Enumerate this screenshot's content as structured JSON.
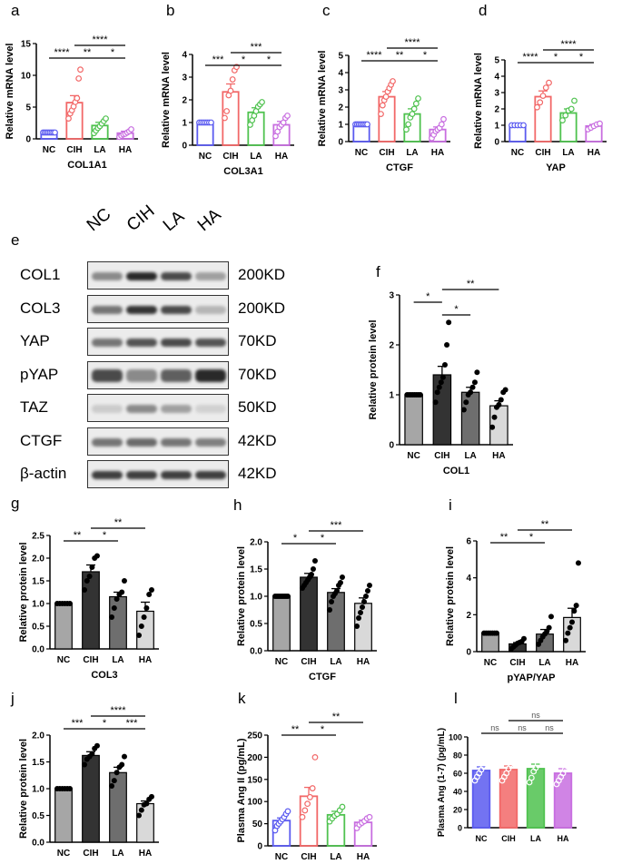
{
  "panel_letters": {
    "a": "a",
    "b": "b",
    "c": "c",
    "d": "d",
    "e": "e",
    "f": "f",
    "g": "g",
    "h": "h",
    "i": "i",
    "j": "j",
    "k": "k",
    "l": "l"
  },
  "western_blot": {
    "lanes": [
      "NC",
      "CIH",
      "LA",
      "HA"
    ],
    "rows": [
      {
        "protein": "COL1",
        "size": "200KD"
      },
      {
        "protein": "COL3",
        "size": "200KD"
      },
      {
        "protein": "YAP",
        "size": "70KD"
      },
      {
        "protein": "pYAP",
        "size": "70KD"
      },
      {
        "protein": "TAZ",
        "size": "50KD"
      },
      {
        "protein": "CTGF",
        "size": "42KD"
      },
      {
        "protein": "β-actin",
        "size": "42KD"
      }
    ]
  },
  "chart_data": [
    {
      "id": "a",
      "type": "bar",
      "style": "color",
      "categories": [
        "NC",
        "CIH",
        "LA",
        "HA"
      ],
      "xlabel": "COL1A1",
      "ylabel": "Relative mRNA level",
      "ylim": [
        0,
        15
      ],
      "yticks": [
        0,
        5,
        10,
        15
      ],
      "values": [
        1.0,
        5.7,
        2.1,
        0.9
      ],
      "errors": [
        0.1,
        1.1,
        0.5,
        0.3
      ],
      "points": [
        [
          1,
          1,
          1,
          1,
          1,
          1,
          1,
          1
        ],
        [
          3.2,
          4.0,
          4.5,
          5.1,
          5.8,
          6.4,
          9.5,
          10.9
        ],
        [
          0.9,
          1.3,
          1.7,
          2.0,
          2.4,
          2.8,
          3.2
        ],
        [
          0.3,
          0.5,
          0.7,
          0.8,
          1.0,
          1.2,
          1.5
        ]
      ],
      "colors": [
        "#5b5bf0",
        "#f26868",
        "#4fc24f",
        "#c86ee0"
      ],
      "sig": [
        {
          "from": 0,
          "to": 1,
          "label": "****",
          "level": 0
        },
        {
          "from": 1,
          "to": 2,
          "label": "**",
          "level": 0
        },
        {
          "from": 2,
          "to": 3,
          "label": "*",
          "level": 0
        },
        {
          "from": 1,
          "to": 3,
          "label": "****",
          "level": 1
        }
      ]
    },
    {
      "id": "b",
      "type": "bar",
      "style": "color",
      "categories": [
        "NC",
        "CIH",
        "LA",
        "HA"
      ],
      "xlabel": "COL3A1",
      "ylabel": "Relative mRNA level",
      "ylim": [
        0,
        4
      ],
      "yticks": [
        0,
        1,
        2,
        3,
        4
      ],
      "values": [
        1.0,
        2.35,
        1.45,
        0.9
      ],
      "errors": [
        0.02,
        0.35,
        0.2,
        0.15
      ],
      "points": [
        [
          1,
          1,
          1,
          1,
          1,
          1,
          1
        ],
        [
          1.2,
          1.5,
          2.2,
          2.4,
          2.9,
          3.3,
          3.45
        ],
        [
          0.9,
          1.1,
          1.3,
          1.5,
          1.7,
          1.8,
          1.9
        ],
        [
          0.4,
          0.6,
          0.8,
          0.9,
          1.0,
          1.2,
          1.3
        ]
      ],
      "colors": [
        "#5b5bf0",
        "#f26868",
        "#4fc24f",
        "#c86ee0"
      ],
      "sig": [
        {
          "from": 0,
          "to": 1,
          "label": "***",
          "level": 0
        },
        {
          "from": 1,
          "to": 2,
          "label": "*",
          "level": 0
        },
        {
          "from": 2,
          "to": 3,
          "label": "*",
          "level": 0
        },
        {
          "from": 1,
          "to": 3,
          "label": "***",
          "level": 1
        }
      ]
    },
    {
      "id": "c",
      "type": "bar",
      "style": "color",
      "categories": [
        "NC",
        "CIH",
        "LA",
        "HA"
      ],
      "xlabel": "CTGF",
      "ylabel": "Relative mRNA level",
      "ylim": [
        0,
        5
      ],
      "yticks": [
        0,
        1,
        2,
        3,
        4,
        5
      ],
      "values": [
        1.0,
        2.6,
        1.6,
        0.7
      ],
      "errors": [
        0.03,
        0.3,
        0.3,
        0.15
      ],
      "points": [
        [
          1,
          1,
          1,
          1,
          1,
          1,
          1,
          1
        ],
        [
          1.6,
          2.1,
          2.4,
          2.6,
          2.9,
          3.1,
          3.3,
          3.5
        ],
        [
          0.7,
          1.0,
          1.4,
          1.6,
          1.9,
          2.2,
          2.5
        ],
        [
          0.2,
          0.4,
          0.6,
          0.7,
          0.8,
          1.0,
          1.3
        ]
      ],
      "colors": [
        "#5b5bf0",
        "#f26868",
        "#4fc24f",
        "#c86ee0"
      ],
      "sig": [
        {
          "from": 0,
          "to": 1,
          "label": "****",
          "level": 0
        },
        {
          "from": 1,
          "to": 2,
          "label": "**",
          "level": 0
        },
        {
          "from": 2,
          "to": 3,
          "label": "*",
          "level": 0
        },
        {
          "from": 1,
          "to": 3,
          "label": "****",
          "level": 1
        }
      ]
    },
    {
      "id": "d",
      "type": "bar",
      "style": "color",
      "categories": [
        "NC",
        "CIH",
        "LA",
        "HA"
      ],
      "xlabel": "YAP",
      "ylabel": "Relative mRNA level",
      "ylim": [
        0,
        5
      ],
      "yticks": [
        0,
        1,
        2,
        3,
        4,
        5
      ],
      "values": [
        1.0,
        2.75,
        1.75,
        0.95
      ],
      "errors": [
        0.02,
        0.35,
        0.25,
        0.1
      ],
      "points": [
        [
          1,
          1,
          1,
          1,
          1
        ],
        [
          2.1,
          2.4,
          2.8,
          3.3,
          3.6
        ],
        [
          1.3,
          1.6,
          1.9,
          2.0,
          2.5
        ],
        [
          0.75,
          0.85,
          0.95,
          1.05,
          1.1
        ]
      ],
      "colors": [
        "#5b5bf0",
        "#f26868",
        "#4fc24f",
        "#c86ee0"
      ],
      "sig": [
        {
          "from": 0,
          "to": 1,
          "label": "****",
          "level": 0
        },
        {
          "from": 1,
          "to": 2,
          "label": "*",
          "level": 0
        },
        {
          "from": 2,
          "to": 3,
          "label": "*",
          "level": 0
        },
        {
          "from": 1,
          "to": 3,
          "label": "****",
          "level": 1
        }
      ]
    },
    {
      "id": "f",
      "type": "bar",
      "style": "gray",
      "categories": [
        "NC",
        "CIH",
        "LA",
        "HA"
      ],
      "xlabel": "COL1",
      "ylabel": "Relative protein level",
      "ylim": [
        0,
        3
      ],
      "yticks": [
        0,
        1,
        2,
        3
      ],
      "values": [
        1.0,
        1.4,
        1.05,
        0.78
      ],
      "errors": [
        0.02,
        0.17,
        0.1,
        0.1
      ],
      "points": [
        [
          1,
          1,
          1,
          1,
          1,
          1,
          1,
          1
        ],
        [
          0.85,
          1.05,
          1.15,
          1.25,
          1.35,
          1.6,
          2.0,
          2.45
        ],
        [
          0.7,
          0.85,
          1.0,
          1.05,
          1.15,
          1.25,
          1.45
        ],
        [
          0.35,
          0.55,
          0.75,
          0.8,
          0.9,
          1.05,
          1.1
        ]
      ],
      "colors": [
        "#a6a6a6",
        "#333333",
        "#6e6e6e",
        "#d9d9d9"
      ],
      "sig": [
        {
          "from": 0,
          "to": 1,
          "label": "*",
          "level": 0
        },
        {
          "from": 1,
          "to": 2,
          "label": "*",
          "level": -1
        },
        {
          "from": 1,
          "to": 3,
          "label": "**",
          "level": 1
        }
      ]
    },
    {
      "id": "g",
      "type": "bar",
      "style": "gray",
      "categories": [
        "NC",
        "CIH",
        "LA",
        "HA"
      ],
      "xlabel": "COL3",
      "ylabel": "Relative protein level",
      "ylim": [
        0,
        2.5
      ],
      "yticks": [
        0,
        0.5,
        1.0,
        1.5,
        2.0,
        2.5
      ],
      "values": [
        1.0,
        1.7,
        1.15,
        0.83
      ],
      "errors": [
        0.01,
        0.15,
        0.1,
        0.2
      ],
      "points": [
        [
          1,
          1,
          1,
          1,
          1,
          1
        ],
        [
          1.3,
          1.5,
          1.6,
          1.8,
          2.0,
          2.05
        ],
        [
          0.7,
          0.9,
          1.1,
          1.2,
          1.25,
          1.5
        ],
        [
          0.3,
          0.5,
          0.7,
          0.9,
          1.2,
          1.3
        ]
      ],
      "colors": [
        "#a6a6a6",
        "#333333",
        "#6e6e6e",
        "#d9d9d9"
      ],
      "sig": [
        {
          "from": 0,
          "to": 1,
          "label": "**",
          "level": 0
        },
        {
          "from": 1,
          "to": 2,
          "label": "*",
          "level": 0
        },
        {
          "from": 1,
          "to": 3,
          "label": "**",
          "level": 1
        }
      ]
    },
    {
      "id": "h",
      "type": "bar",
      "style": "gray",
      "categories": [
        "NC",
        "CIH",
        "LA",
        "HA"
      ],
      "xlabel": "CTGF",
      "ylabel": "Relative protein level",
      "ylim": [
        0,
        2.0
      ],
      "yticks": [
        0,
        0.5,
        1.0,
        1.5,
        2.0
      ],
      "values": [
        1.0,
        1.35,
        1.07,
        0.87
      ],
      "errors": [
        0.01,
        0.07,
        0.07,
        0.1
      ],
      "points": [
        [
          1,
          1,
          1,
          1,
          1,
          1,
          1,
          1
        ],
        [
          1.15,
          1.2,
          1.25,
          1.3,
          1.35,
          1.4,
          1.5,
          1.65
        ],
        [
          0.75,
          0.9,
          1.0,
          1.05,
          1.1,
          1.2,
          1.25,
          1.35
        ],
        [
          0.45,
          0.6,
          0.7,
          0.8,
          0.9,
          1.0,
          1.1,
          1.2
        ]
      ],
      "colors": [
        "#a6a6a6",
        "#333333",
        "#6e6e6e",
        "#d9d9d9"
      ],
      "sig": [
        {
          "from": 0,
          "to": 1,
          "label": "*",
          "level": 0
        },
        {
          "from": 1,
          "to": 2,
          "label": "*",
          "level": 0
        },
        {
          "from": 1,
          "to": 3,
          "label": "***",
          "level": 1
        }
      ]
    },
    {
      "id": "i",
      "type": "bar",
      "style": "gray",
      "categories": [
        "NC",
        "CIH",
        "LA",
        "HA"
      ],
      "xlabel": "pYAP/YAP",
      "ylabel": "Relative protein level",
      "ylim": [
        0,
        6
      ],
      "yticks": [
        0,
        2,
        4,
        6
      ],
      "values": [
        1.0,
        0.42,
        0.95,
        1.85
      ],
      "errors": [
        0.01,
        0.07,
        0.25,
        0.5
      ],
      "points": [
        [
          1,
          1,
          1,
          1,
          1,
          1,
          1
        ],
        [
          0.15,
          0.25,
          0.35,
          0.45,
          0.5,
          0.55,
          0.7
        ],
        [
          0.4,
          0.6,
          0.8,
          0.95,
          1.1,
          1.3,
          1.9
        ],
        [
          0.6,
          1.0,
          1.3,
          1.6,
          2.2,
          2.5,
          4.8
        ]
      ],
      "colors": [
        "#a6a6a6",
        "#333333",
        "#6e6e6e",
        "#d9d9d9"
      ],
      "sig": [
        {
          "from": 0,
          "to": 1,
          "label": "**",
          "level": 0
        },
        {
          "from": 1,
          "to": 2,
          "label": "*",
          "level": 0
        },
        {
          "from": 1,
          "to": 3,
          "label": "**",
          "level": 1
        }
      ]
    },
    {
      "id": "j",
      "type": "bar",
      "style": "gray",
      "categories": [
        "NC",
        "CIH",
        "LA",
        "HA"
      ],
      "xlabel": "TAZ",
      "ylabel": "Relative protein level",
      "ylim": [
        0,
        2.0
      ],
      "yticks": [
        0,
        0.5,
        1.0,
        1.5,
        2.0
      ],
      "values": [
        1.0,
        1.62,
        1.3,
        0.72
      ],
      "errors": [
        0.01,
        0.07,
        0.1,
        0.05
      ],
      "points": [
        [
          1,
          1,
          1,
          1,
          1,
          1
        ],
        [
          1.45,
          1.55,
          1.6,
          1.65,
          1.75,
          1.8
        ],
        [
          1.05,
          1.15,
          1.3,
          1.4,
          1.45,
          1.6
        ],
        [
          0.5,
          0.6,
          0.7,
          0.72,
          0.8,
          0.85
        ]
      ],
      "colors": [
        "#a6a6a6",
        "#333333",
        "#6e6e6e",
        "#d9d9d9"
      ],
      "sig": [
        {
          "from": 0,
          "to": 1,
          "label": "***",
          "level": 0
        },
        {
          "from": 1,
          "to": 2,
          "label": "*",
          "level": 0
        },
        {
          "from": 2,
          "to": 3,
          "label": "***",
          "level": 0
        },
        {
          "from": 1,
          "to": 3,
          "label": "****",
          "level": 1
        }
      ]
    },
    {
      "id": "k",
      "type": "bar",
      "style": "color",
      "categories": [
        "NC",
        "CIH",
        "LA",
        "HA"
      ],
      "xlabel": "",
      "ylabel": "Plasma Ang II (pg/mL)",
      "ylim": [
        0,
        250
      ],
      "yticks": [
        0,
        50,
        100,
        150,
        200,
        250
      ],
      "values": [
        57,
        112,
        70,
        53
      ],
      "errors": [
        6,
        20,
        8,
        5
      ],
      "points": [
        [
          35,
          45,
          50,
          55,
          60,
          65,
          72,
          78
        ],
        [
          65,
          80,
          95,
          110,
          130,
          200
        ],
        [
          55,
          62,
          68,
          72,
          80,
          88
        ],
        [
          40,
          48,
          52,
          56,
          62,
          65
        ]
      ],
      "colors": [
        "#5b5bf0",
        "#f26868",
        "#4fc24f",
        "#c86ee0"
      ],
      "sig": [
        {
          "from": 0,
          "to": 1,
          "label": "**",
          "level": 0
        },
        {
          "from": 1,
          "to": 2,
          "label": "*",
          "level": 0
        },
        {
          "from": 1,
          "to": 3,
          "label": "**",
          "level": 1
        }
      ]
    },
    {
      "id": "l",
      "type": "bar",
      "style": "color",
      "categories": [
        "NC",
        "CIH",
        "LA",
        "HA"
      ],
      "xlabel": "",
      "ylabel": "Plasma Ang (1-7) (pg/mL)",
      "ylim": [
        0,
        100
      ],
      "yticks": [
        0,
        20,
        40,
        60,
        80,
        100
      ],
      "values": [
        63,
        64,
        65,
        60
      ],
      "errors": [
        4,
        4,
        5,
        5
      ],
      "points": [
        [
          52,
          56,
          60,
          64,
          68,
          72,
          75
        ],
        [
          52,
          56,
          60,
          65,
          70,
          74,
          78
        ],
        [
          50,
          55,
          62,
          66,
          70,
          75,
          78
        ],
        [
          48,
          52,
          56,
          60,
          64,
          68,
          74
        ]
      ],
      "colors": [
        "#5b5bf0",
        "#f26868",
        "#4fc24f",
        "#c86ee0"
      ],
      "sig": [
        {
          "from": 0,
          "to": 1,
          "label": "ns",
          "level": 0
        },
        {
          "from": 1,
          "to": 2,
          "label": "ns",
          "level": 0
        },
        {
          "from": 2,
          "to": 3,
          "label": "ns",
          "level": 0
        },
        {
          "from": 1,
          "to": 3,
          "label": "ns",
          "level": 1
        }
      ]
    }
  ]
}
